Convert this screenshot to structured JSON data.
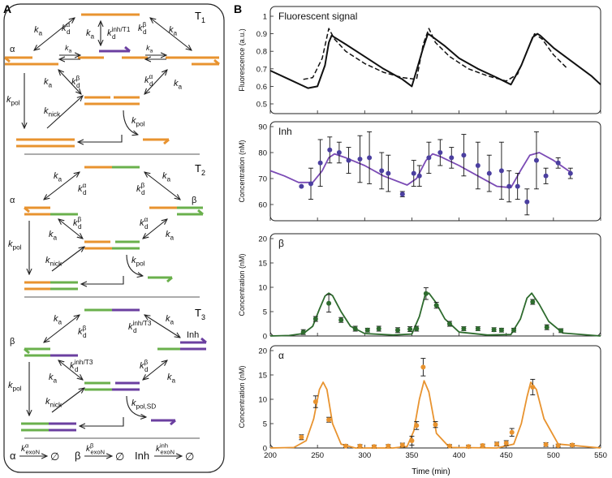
{
  "panel_a": {
    "label": "A",
    "rows": [
      {
        "name": "T1",
        "label_main": "T",
        "label_sub": "1",
        "left_species": "α",
        "right_species": "",
        "ka": "k",
        "ka_sub": "a",
        "kd": "k",
        "kd_sub": "d",
        "kd_alpha_sup": "α",
        "kd_beta_sup": "β",
        "kd_inh_sup": "inh/T",
        "kd_inh_sup_sub": "1",
        "kpol": "k",
        "kpol_sub": "pol",
        "knick": "k",
        "knick_sub": "nick",
        "kpol_out_sub": "pol"
      },
      {
        "name": "T2",
        "label_main": "T",
        "label_sub": "2",
        "left_species": "α",
        "right_species": "β",
        "kpol_out_sub": "pol"
      },
      {
        "name": "T3",
        "label_main": "T",
        "label_sub": "3",
        "left_species": "β",
        "right_species": "Inh",
        "kd_inh_sup": "inh/T",
        "kd_inh_sup_sub": "3",
        "kpol_out_sub": "pol,SD"
      }
    ],
    "degradation": {
      "species": [
        "α",
        "β",
        "Inh"
      ],
      "rate": "k",
      "rate_sub": "exoN",
      "rate_sups": [
        "α",
        "β",
        "inh"
      ],
      "sink": "∅"
    }
  },
  "panel_b": {
    "label": "B",
    "x_label": "Time (min)",
    "x_ticks": [
      200,
      250,
      300,
      350,
      400,
      450,
      500,
      550
    ]
  },
  "colors": {
    "orange": "#e8932f",
    "green": "#6ab04c",
    "purple": "#6b3fa0",
    "dark_green": "#2e6b2e",
    "purple_line": "#7b4bb5",
    "inh_points": "#4b3fa0"
  },
  "chart_data": [
    {
      "type": "line",
      "title": "Fluorescent signal",
      "xlabel": "Time (min)",
      "ylabel": "Fluorescence (a.u.)",
      "xlim": [
        200,
        550
      ],
      "ylim": [
        0.5,
        1.0
      ],
      "yticks": [
        0.5,
        0.6,
        0.7,
        0.8,
        0.9,
        1.0
      ],
      "series": [
        {
          "style": "solid",
          "x": [
            200,
            220,
            240,
            250,
            258,
            262,
            265,
            280,
            300,
            320,
            340,
            350,
            362,
            367,
            370,
            385,
            400,
            420,
            440,
            455,
            466,
            478,
            483,
            486,
            500,
            520,
            540,
            550
          ],
          "y": [
            0.69,
            0.64,
            0.59,
            0.6,
            0.72,
            0.85,
            0.89,
            0.84,
            0.77,
            0.7,
            0.64,
            0.6,
            0.82,
            0.9,
            0.89,
            0.83,
            0.76,
            0.7,
            0.65,
            0.61,
            0.72,
            0.88,
            0.9,
            0.89,
            0.82,
            0.74,
            0.66,
            0.61
          ]
        },
        {
          "style": "dashed",
          "x": [
            235,
            245,
            255,
            262,
            268,
            280,
            300,
            320,
            340,
            355,
            362,
            368,
            375,
            390,
            410,
            430,
            450,
            462,
            472,
            480,
            488,
            500,
            515
          ],
          "y": [
            0.64,
            0.65,
            0.76,
            0.93,
            0.87,
            0.8,
            0.73,
            0.68,
            0.65,
            0.64,
            0.84,
            0.93,
            0.85,
            0.77,
            0.7,
            0.66,
            0.63,
            0.67,
            0.8,
            0.9,
            0.87,
            0.78,
            0.7
          ]
        }
      ]
    },
    {
      "type": "line",
      "title": "Inh",
      "xlabel": "Time (min)",
      "ylabel": "Concentration (nM)",
      "xlim": [
        200,
        550
      ],
      "ylim": [
        55,
        90
      ],
      "yticks": [
        60,
        70,
        80,
        90
      ],
      "series": [
        {
          "style": "line",
          "x": [
            200,
            215,
            230,
            245,
            255,
            262,
            268,
            280,
            300,
            320,
            345,
            355,
            365,
            372,
            380,
            400,
            420,
            440,
            455,
            465,
            475,
            485,
            500,
            520
          ],
          "y": [
            73,
            71,
            68.5,
            68.5,
            73,
            78,
            79.5,
            78,
            75,
            71,
            67.5,
            70,
            77,
            79.5,
            78.5,
            75,
            71,
            67,
            66.5,
            73,
            79,
            80,
            77,
            72
          ]
        },
        {
          "style": "points",
          "x": [
            233,
            243,
            253,
            263,
            273,
            283,
            295,
            305,
            318,
            325,
            340,
            352,
            358,
            368,
            380,
            392,
            405,
            420,
            432,
            445,
            453,
            462,
            472,
            482,
            492,
            505,
            518
          ],
          "y": [
            67,
            68,
            76,
            81,
            80,
            77,
            77.5,
            78,
            73,
            72,
            64,
            72,
            71,
            78,
            80,
            78,
            79,
            75,
            72,
            73,
            67,
            67,
            61,
            77,
            71,
            76,
            72
          ],
          "err": [
            0,
            6,
            9,
            5,
            4,
            5,
            9,
            10,
            7,
            7,
            1,
            5,
            4,
            6,
            5,
            4,
            8,
            9,
            7,
            11,
            6,
            5,
            5,
            11,
            3,
            2,
            2
          ]
        }
      ]
    },
    {
      "type": "line",
      "title": "β",
      "xlabel": "Time (min)",
      "ylabel": "Concentration (nM)",
      "xlim": [
        200,
        550
      ],
      "ylim": [
        0,
        20
      ],
      "yticks": [
        0,
        5,
        10,
        15,
        20
      ],
      "series": [
        {
          "style": "line",
          "x": [
            200,
            220,
            235,
            245,
            252,
            258,
            262,
            266,
            275,
            285,
            300,
            330,
            350,
            358,
            364,
            368,
            375,
            385,
            400,
            430,
            455,
            465,
            472,
            477,
            485,
            495,
            510,
            550
          ],
          "y": [
            0,
            0.1,
            0.5,
            2,
            5.5,
            8.2,
            8.8,
            8.3,
            5,
            2,
            0.5,
            0.2,
            0.4,
            4,
            8.4,
            8.8,
            7,
            3.5,
            0.8,
            0.2,
            0.3,
            3.5,
            7.8,
            8.8,
            6.5,
            3,
            0.6,
            0
          ]
        },
        {
          "style": "points",
          "x": [
            235,
            248,
            262,
            275,
            290,
            303,
            315,
            335,
            348,
            355,
            365,
            376,
            390,
            405,
            420,
            437,
            445,
            458,
            478,
            493,
            508
          ],
          "y": [
            0.8,
            3.5,
            6.7,
            3.3,
            1.5,
            1.2,
            1.5,
            1.2,
            1.4,
            1.5,
            8.7,
            6.3,
            2.5,
            1.5,
            1.5,
            1.3,
            1.2,
            1.2,
            7,
            1.8,
            1.1
          ],
          "err": [
            0.5,
            0.5,
            1.8,
            0.5,
            0.5,
            0.4,
            0.5,
            0.5,
            0.5,
            0.5,
            1.2,
            0.6,
            0.5,
            0.4,
            0.4,
            0.4,
            0.4,
            0.4,
            0.5,
            0.5,
            0.4
          ]
        }
      ]
    },
    {
      "type": "line",
      "title": "α",
      "xlabel": "Time (min)",
      "ylabel": "Concentration (nM)",
      "xlim": [
        200,
        550
      ],
      "ylim": [
        0,
        20
      ],
      "yticks": [
        0,
        5,
        10,
        15,
        20
      ],
      "series": [
        {
          "style": "line",
          "x": [
            200,
            225,
            238,
            246,
            252,
            256,
            260,
            266,
            275,
            290,
            330,
            345,
            352,
            358,
            363,
            368,
            376,
            390,
            440,
            458,
            466,
            472,
            476,
            482,
            490,
            505,
            550
          ],
          "y": [
            0,
            0.1,
            1.5,
            6,
            12,
            13.5,
            12,
            5,
            0.8,
            0,
            0,
            0.3,
            3.5,
            10,
            13.8,
            11.5,
            3,
            0.1,
            0,
            0.8,
            5,
            10.5,
            13.5,
            12,
            6,
            0.8,
            0
          ]
        },
        {
          "style": "points",
          "x": [
            233,
            248,
            262,
            280,
            295,
            310,
            325,
            340,
            350,
            355,
            362,
            375,
            390,
            410,
            425,
            440,
            450,
            456,
            478,
            492,
            505,
            520
          ],
          "y": [
            2.2,
            9.5,
            5.8,
            0.4,
            0.4,
            0.3,
            0.4,
            0.6,
            1.5,
            4.6,
            16.6,
            4.8,
            0.4,
            0.3,
            0.5,
            0.8,
            1,
            3.2,
            12.5,
            0.7,
            0.5,
            0.6
          ],
          "err": [
            0.5,
            1.2,
            0.5,
            0.3,
            0.3,
            0.3,
            0.3,
            0.4,
            0.9,
            0.8,
            1.8,
            0.6,
            0.3,
            0.3,
            0.3,
            0.4,
            0.5,
            0.8,
            1.6,
            0.4,
            0.3,
            0.3
          ]
        }
      ]
    }
  ]
}
